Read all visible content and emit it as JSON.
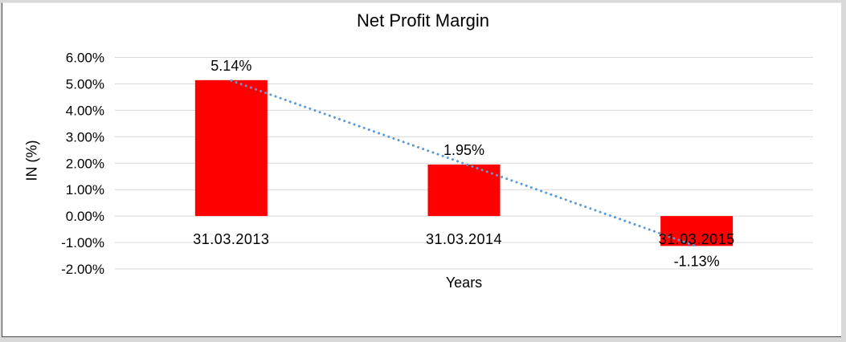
{
  "chart_data": {
    "type": "bar",
    "title": "Net Profit Margin",
    "xlabel": "Years",
    "ylabel": "IN (%)",
    "categories": [
      "31.03.2013",
      "31.03.2014",
      "31.03.2015"
    ],
    "values": [
      5.14,
      1.95,
      -1.13
    ],
    "data_labels": [
      "5.14%",
      "1.95%",
      "-1.13%"
    ],
    "y_ticks": [
      {
        "label": "6.00%",
        "value": 6
      },
      {
        "label": "5.00%",
        "value": 5
      },
      {
        "label": "4.00%",
        "value": 4
      },
      {
        "label": "3.00%",
        "value": 3
      },
      {
        "label": "2.00%",
        "value": 2
      },
      {
        "label": "1.00%",
        "value": 1
      },
      {
        "label": "0.00%",
        "value": 0
      },
      {
        "label": "-1.00%",
        "value": -1
      },
      {
        "label": "-2.00%",
        "value": -2
      }
    ],
    "ylim": [
      -2,
      6
    ],
    "grid": true,
    "legend": "none",
    "trendline": {
      "type": "linear",
      "style": "dotted"
    },
    "colors": {
      "bar": "#FF0000",
      "trendline": "#5B9BD5",
      "gridline": "#D9D9D9",
      "text": "#000000",
      "frame_outer": "#D9D9D9",
      "frame_line": "#474747"
    }
  }
}
